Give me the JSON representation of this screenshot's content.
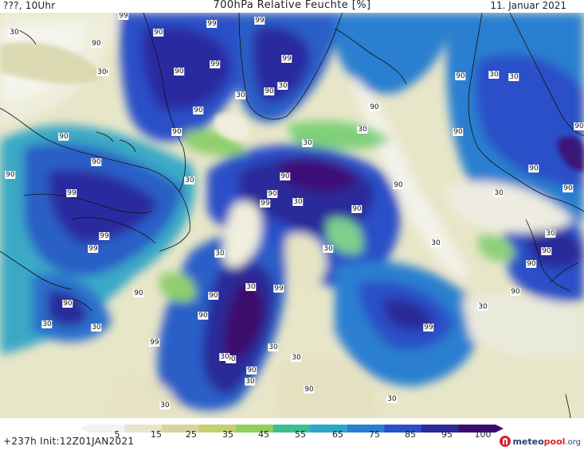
{
  "header": {
    "left": "???, 10Uhr",
    "title": "700hPa Relative Feuchte [%]",
    "right": "11. Januar 2021"
  },
  "colorbar": {
    "labels": [
      "5",
      "15",
      "25",
      "35",
      "45",
      "55",
      "65",
      "75",
      "85",
      "95",
      "100"
    ],
    "colors": [
      "#f2f2f0",
      "#e8e4cc",
      "#d9d2a2",
      "#c4cf6e",
      "#8fcf5a",
      "#3cbf8c",
      "#2aa7c9",
      "#2a7fd0",
      "#2a4fc8",
      "#2a2a9a",
      "#3c0a6e"
    ]
  },
  "footer": {
    "run": "+237h Init:12Z01JAN2021",
    "logo_main": "meteo",
    "logo_accent": "pool",
    "logo_tld": ".org"
  },
  "contour_labels": [
    "99",
    "90",
    "99",
    "90",
    "90",
    "99",
    "30",
    "99",
    "90",
    "30",
    "99",
    "90",
    "90",
    "90",
    "99",
    "30",
    "30",
    "90",
    "30",
    "30",
    "90",
    "30",
    "30",
    "90",
    "90",
    "90",
    "90",
    "30",
    "30",
    "90",
    "90",
    "90",
    "30",
    "99",
    "30",
    "90",
    "30",
    "30",
    "90",
    "90",
    "30",
    "30",
    "30",
    "90",
    "90",
    "30",
    "90",
    "90",
    "99",
    "30",
    "30",
    "99",
    "30",
    "90",
    "90",
    "99",
    "99",
    "99",
    "90",
    "30",
    "30",
    "90",
    "90",
    "90",
    "30",
    "30",
    "30"
  ]
}
